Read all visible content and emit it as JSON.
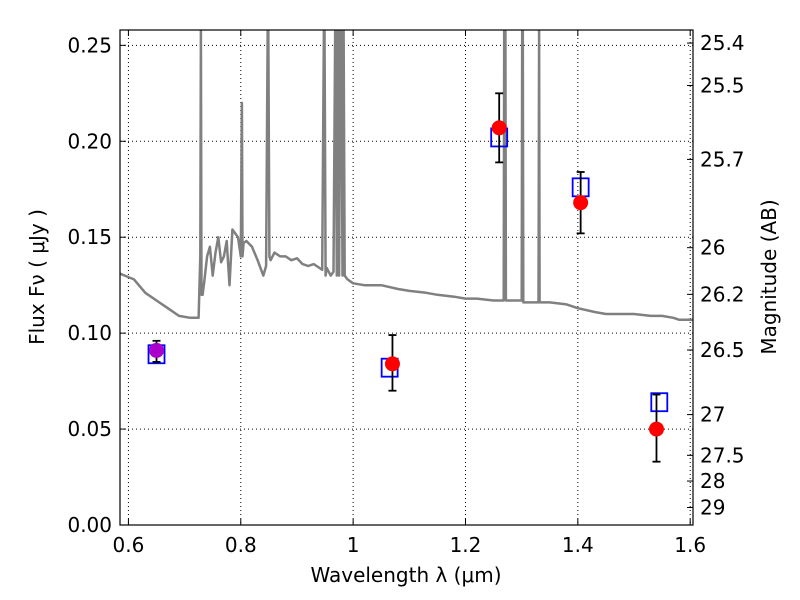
{
  "chart_data": {
    "type": "scatter",
    "title": "",
    "xlabel": "Wavelength  λ (μm)",
    "ylabel": "Flux  Fν  ( μJy )",
    "ylabel_right": "Magnitude (AB)",
    "xlim": [
      0.585,
      1.605
    ],
    "ylim": [
      0.0,
      0.258
    ],
    "x_ticks": [
      0.6,
      0.8,
      1.0,
      1.2,
      1.4,
      1.6
    ],
    "x_tick_labels": [
      "0.6",
      "0.8",
      "1",
      "1.2",
      "1.4",
      "1.6"
    ],
    "y_ticks": [
      0.0,
      0.05,
      0.1,
      0.15,
      0.2,
      0.25
    ],
    "y_tick_labels": [
      "0.00",
      "0.05",
      "0.10",
      "0.15",
      "0.20",
      "0.25"
    ],
    "right_ticks": [
      {
        "label": "25.4",
        "mag": 25.4
      },
      {
        "label": "25.5",
        "mag": 25.5
      },
      {
        "label": "25.7",
        "mag": 25.7
      },
      {
        "label": "26",
        "mag": 26.0
      },
      {
        "label": "26.2",
        "mag": 26.2
      },
      {
        "label": "26.5",
        "mag": 26.5
      },
      {
        "label": "27",
        "mag": 27.0
      },
      {
        "label": "27.5",
        "mag": 27.5
      },
      {
        "label": "28",
        "mag": 28.0
      },
      {
        "label": "29",
        "mag": 29.0
      }
    ],
    "grid": true,
    "colors": {
      "observed": "#ff0000",
      "observed_first": "#aa00cc",
      "model_box": "#0000ff",
      "spectrum": "#808080",
      "errorbar": "#000000"
    },
    "series": [
      {
        "name": "observed",
        "marker": "circle",
        "points": [
          {
            "x": 0.65,
            "y": 0.091,
            "yerr_low": 0.085,
            "yerr_high": 0.096
          },
          {
            "x": 1.07,
            "y": 0.084,
            "yerr_low": 0.07,
            "yerr_high": 0.099
          },
          {
            "x": 1.26,
            "y": 0.207,
            "yerr_low": 0.189,
            "yerr_high": 0.225
          },
          {
            "x": 1.405,
            "y": 0.168,
            "yerr_low": 0.152,
            "yerr_high": 0.184
          },
          {
            "x": 1.54,
            "y": 0.05,
            "yerr_low": 0.033,
            "yerr_high": 0.068
          }
        ]
      },
      {
        "name": "model_photometry",
        "marker": "square",
        "points": [
          {
            "x": 0.65,
            "y": 0.089
          },
          {
            "x": 1.065,
            "y": 0.082
          },
          {
            "x": 1.26,
            "y": 0.202
          },
          {
            "x": 1.405,
            "y": 0.176
          },
          {
            "x": 1.545,
            "y": 0.064
          }
        ]
      },
      {
        "name": "model_spectrum",
        "type": "line",
        "x": [
          0.585,
          0.61,
          0.63,
          0.65,
          0.67,
          0.69,
          0.71,
          0.725,
          0.728,
          0.729,
          0.73,
          0.732,
          0.735,
          0.74,
          0.745,
          0.75,
          0.755,
          0.76,
          0.765,
          0.77,
          0.775,
          0.78,
          0.785,
          0.79,
          0.795,
          0.8,
          0.802,
          0.803,
          0.805,
          0.81,
          0.82,
          0.83,
          0.84,
          0.845,
          0.848,
          0.849,
          0.851,
          0.853,
          0.86,
          0.87,
          0.88,
          0.89,
          0.9,
          0.91,
          0.92,
          0.93,
          0.94,
          0.945,
          0.948,
          0.949,
          0.951,
          0.953,
          0.96,
          0.965,
          0.968,
          0.969,
          0.971,
          0.973,
          0.975,
          0.977,
          0.979,
          0.981,
          0.983,
          0.985,
          0.99,
          1.0,
          1.02,
          1.05,
          1.08,
          1.1,
          1.13,
          1.15,
          1.18,
          1.2,
          1.22,
          1.25,
          1.268,
          1.269,
          1.27,
          1.271,
          1.272,
          1.28,
          1.29,
          1.3,
          1.301,
          1.302,
          1.303,
          1.31,
          1.32,
          1.33,
          1.331,
          1.332,
          1.35,
          1.38,
          1.4,
          1.43,
          1.45,
          1.48,
          1.5,
          1.53,
          1.55,
          1.57,
          1.58,
          1.6,
          1.605
        ],
        "y": [
          0.131,
          0.128,
          0.121,
          0.117,
          0.113,
          0.109,
          0.108,
          0.108,
          0.14,
          0.26,
          0.12,
          0.12,
          0.127,
          0.14,
          0.145,
          0.13,
          0.142,
          0.15,
          0.137,
          0.14,
          0.148,
          0.125,
          0.154,
          0.152,
          0.15,
          0.14,
          0.22,
          0.14,
          0.147,
          0.148,
          0.145,
          0.138,
          0.13,
          0.135,
          0.26,
          0.26,
          0.14,
          0.138,
          0.142,
          0.14,
          0.14,
          0.138,
          0.139,
          0.136,
          0.135,
          0.136,
          0.134,
          0.133,
          0.26,
          0.26,
          0.13,
          0.134,
          0.13,
          0.132,
          0.26,
          0.26,
          0.13,
          0.26,
          0.13,
          0.26,
          0.26,
          0.13,
          0.26,
          0.13,
          0.128,
          0.126,
          0.125,
          0.125,
          0.123,
          0.122,
          0.121,
          0.12,
          0.119,
          0.118,
          0.118,
          0.117,
          0.117,
          0.26,
          0.26,
          0.26,
          0.117,
          0.117,
          0.117,
          0.117,
          0.26,
          0.26,
          0.116,
          0.116,
          0.116,
          0.116,
          0.26,
          0.116,
          0.116,
          0.115,
          0.113,
          0.111,
          0.11,
          0.11,
          0.11,
          0.109,
          0.109,
          0.108,
          0.107,
          0.107,
          0.107
        ]
      }
    ]
  }
}
